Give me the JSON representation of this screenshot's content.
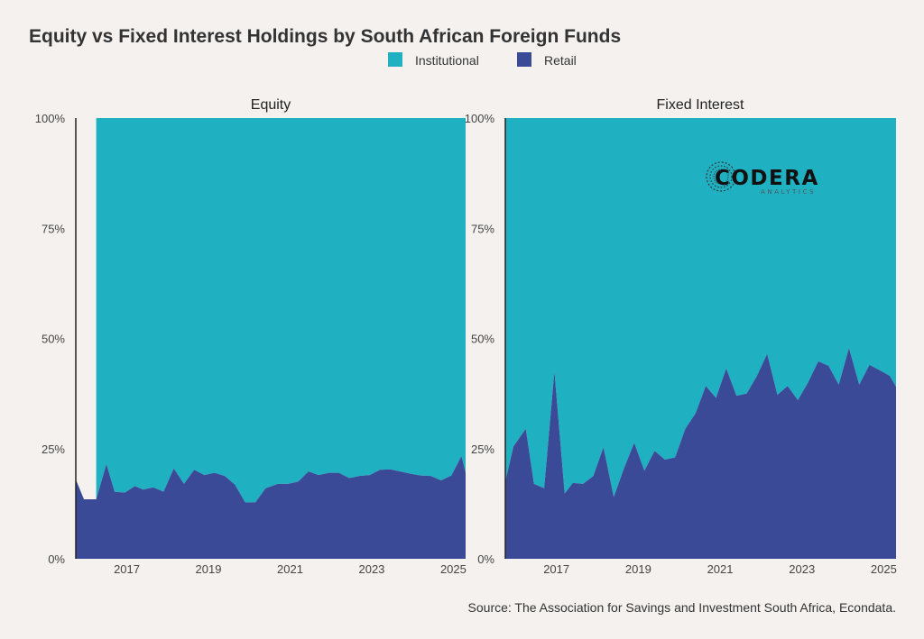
{
  "title": "Equity vs Fixed Interest Holdings by South African Foreign Funds",
  "source": "Source: The Association for Savings and Investment South Africa, Econdata.",
  "logo": {
    "main": "CODERA",
    "sub": "ANALYTICS"
  },
  "colors": {
    "institutional": "#1fb1c2",
    "retail": "#3a4a97",
    "background": "#f5f1ef"
  },
  "legend": [
    {
      "name": "Institutional",
      "color": "#1fb1c2"
    },
    {
      "name": "Retail",
      "color": "#3a4a97"
    }
  ],
  "y_ticks": [
    "0%",
    "25%",
    "50%",
    "75%",
    "100%"
  ],
  "x_ticks": [
    "2017",
    "2019",
    "2021",
    "2023",
    "2025"
  ],
  "chart_data": [
    {
      "type": "area",
      "stacked": true,
      "title": "Equity",
      "xlabel": "",
      "ylabel": "",
      "ylim": [
        0,
        100
      ],
      "xlim": [
        2015.75,
        2025.3
      ],
      "grid": false,
      "legend": "top-center",
      "series": [
        {
          "name": "Retail",
          "x": [
            2015.75,
            2015.95,
            2016.25,
            2016.5,
            2016.7,
            2016.95,
            2017.2,
            2017.4,
            2017.65,
            2017.9,
            2018.15,
            2018.4,
            2018.65,
            2018.9,
            2019.15,
            2019.4,
            2019.65,
            2019.9,
            2020.15,
            2020.4,
            2020.7,
            2020.95,
            2021.2,
            2021.45,
            2021.7,
            2021.95,
            2022.2,
            2022.45,
            2022.7,
            2022.95,
            2023.2,
            2023.45,
            2023.7,
            2023.95,
            2024.2,
            2024.45,
            2024.7,
            2024.95,
            2025.2,
            2025.3
          ],
          "y": [
            18,
            13.5,
            13.5,
            21.5,
            15.2,
            15,
            16.5,
            15.7,
            16.2,
            15.2,
            20.5,
            17,
            20.2,
            19,
            19.5,
            18.8,
            16.8,
            12.8,
            12.8,
            16,
            17,
            17,
            17.5,
            19.8,
            19,
            19.5,
            19.5,
            18.3,
            18.8,
            19,
            20.2,
            20.3,
            19.8,
            19.3,
            18.9,
            18.8,
            17.8,
            18.9,
            23.3,
            19.5
          ]
        },
        {
          "name": "Institutional",
          "x_start": 2016.25,
          "x_end": 2025.3,
          "y_top": 100
        }
      ]
    },
    {
      "type": "area",
      "stacked": true,
      "title": "Fixed Interest",
      "xlabel": "",
      "ylabel": "",
      "ylim": [
        0,
        100
      ],
      "xlim": [
        2015.75,
        2025.3
      ],
      "grid": false,
      "series": [
        {
          "name": "Retail",
          "x": [
            2015.75,
            2015.95,
            2016.25,
            2016.45,
            2016.7,
            2016.95,
            2017.2,
            2017.4,
            2017.65,
            2017.9,
            2018.15,
            2018.4,
            2018.65,
            2018.9,
            2019.15,
            2019.4,
            2019.65,
            2019.9,
            2020.15,
            2020.4,
            2020.65,
            2020.9,
            2021.15,
            2021.4,
            2021.65,
            2021.9,
            2022.15,
            2022.4,
            2022.65,
            2022.9,
            2023.15,
            2023.4,
            2023.65,
            2023.9,
            2024.15,
            2024.4,
            2024.65,
            2024.9,
            2025.15,
            2025.3
          ],
          "y": [
            17.5,
            25.5,
            29.5,
            17,
            16,
            42.5,
            14.8,
            17.2,
            17,
            18.8,
            25.3,
            14,
            20.5,
            26.3,
            20,
            24.5,
            22.5,
            23,
            29.5,
            33,
            39.2,
            36.5,
            43.2,
            37,
            37.5,
            41.5,
            46.5,
            37.2,
            39.2,
            36,
            40,
            44.8,
            43.8,
            39.5,
            47.8,
            39.5,
            44,
            42.8,
            41.5,
            39
          ]
        },
        {
          "name": "Institutional",
          "x_start": 2015.75,
          "x_end": 2025.3,
          "y_top": 100
        }
      ]
    }
  ]
}
